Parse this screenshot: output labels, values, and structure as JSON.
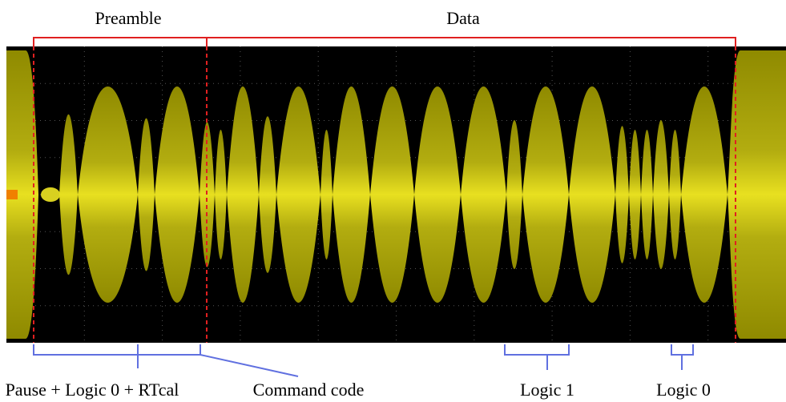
{
  "top_labels": [
    "Preamble",
    "Data"
  ],
  "bottom_labels": [
    "Pause + Logic 0 + RTcal",
    "Command code",
    "Logic 1",
    "Logic 0"
  ]
}
